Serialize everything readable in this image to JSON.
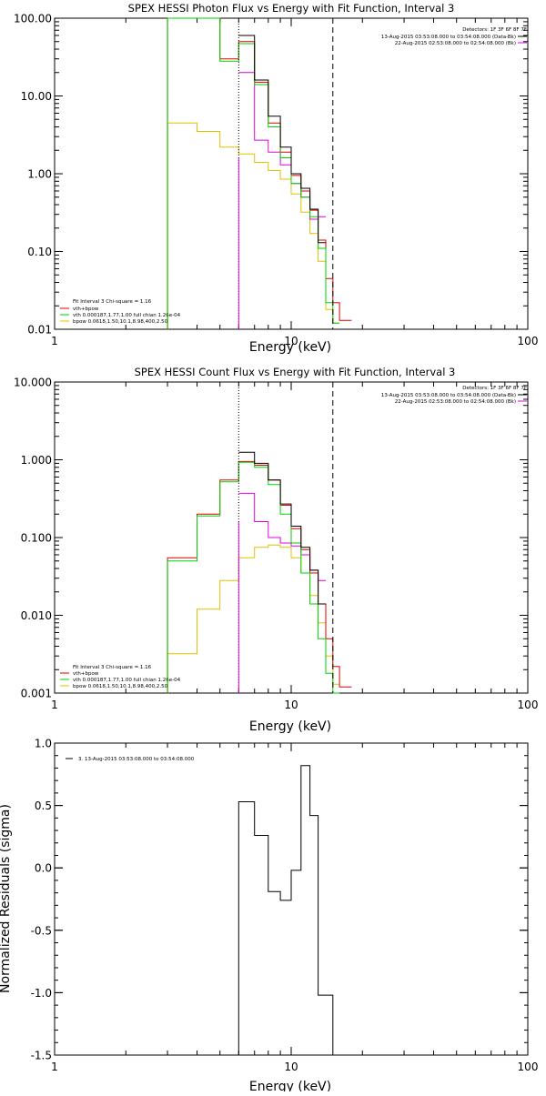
{
  "colors": {
    "background": "#ffffff",
    "axes": "#000000",
    "data": "#000000",
    "total_model": "#e00000",
    "background_model": "#e000e0",
    "vth_component": "#00d000",
    "bpow_component": "#e0c000",
    "energy_marker": "#e000e0"
  },
  "chart_data": [
    {
      "type": "line",
      "title": "SPEX HESSI Photon Flux vs Energy with Fit Function, Interval 3",
      "xlabel": "Energy (keV)",
      "ylabel": "",
      "xscale": "log",
      "yscale": "log",
      "xlim": [
        1,
        100
      ],
      "ylim": [
        0.01,
        100
      ],
      "xticks": [
        "1",
        "10",
        "100"
      ],
      "yticks": [
        "0.01",
        "0.10",
        "1.00",
        "10.00",
        "100.00"
      ],
      "header_lines": [
        "Detectors: 1F 3F 6F 8F 7F",
        "13-Aug-2015 03:53:08.000 to 03:54:08.000 (Data-Bk)",
        "22-Aug-2015 02:53:08.000 to 02:54:08.000 (Bk)"
      ],
      "fit_lines": [
        "Fit Interval 3   Chi-square = 1.16",
        "vth+bpow",
        "vth 0.000187,1.77,1.00  full chian 1.26e-04",
        "bpow 0.0618,1.50,10.1,8.98,400,2.50"
      ],
      "bin_edges": [
        3.0,
        4.0,
        5.0,
        6.0,
        7.0,
        8.0,
        9.0,
        10.0,
        11.0,
        12.0,
        13.0,
        14.0,
        15.0,
        16.0,
        18.0
      ],
      "series": [
        {
          "key": "data",
          "values": [
            null,
            null,
            null,
            60,
            16,
            5.5,
            2.2,
            1.0,
            0.65,
            0.35,
            0.13,
            null,
            null,
            null
          ]
        },
        {
          "key": "total_model",
          "values": [
            100,
            100,
            30,
            50,
            15,
            4.5,
            1.9,
            0.95,
            0.6,
            0.34,
            0.14,
            0.045,
            0.022,
            0.013
          ]
        },
        {
          "key": "background_model",
          "values": [
            null,
            null,
            null,
            20,
            2.7,
            1.9,
            1.3,
            0.75,
            0.5,
            0.26,
            0.28,
            null,
            null,
            null
          ]
        },
        {
          "key": "vth_component",
          "values": [
            100,
            100,
            28,
            47,
            14,
            4.0,
            1.6,
            0.75,
            0.5,
            0.28,
            0.11,
            0.022,
            0.012,
            null
          ]
        },
        {
          "key": "bpow_component",
          "values": [
            4.5,
            3.5,
            2.2,
            1.8,
            1.4,
            1.1,
            0.85,
            0.55,
            0.32,
            0.17,
            0.075,
            0.018,
            0.012,
            null
          ]
        }
      ],
      "vlines": [
        {
          "x": 6.0,
          "style": "dotted"
        },
        {
          "x": 6.0,
          "style": "solid",
          "color": "energy_marker"
        },
        {
          "x": 15.0,
          "style": "dashed"
        }
      ]
    },
    {
      "type": "line",
      "title": "SPEX HESSI Count Flux vs Energy with Fit Function, Interval 3",
      "xlabel": "Energy (keV)",
      "ylabel": "",
      "xscale": "log",
      "yscale": "log",
      "xlim": [
        1,
        100
      ],
      "ylim": [
        0.001,
        10
      ],
      "xticks": [
        "1",
        "10",
        "100"
      ],
      "yticks": [
        "0.001",
        "0.010",
        "0.100",
        "1.000",
        "10.000"
      ],
      "header_lines": [
        "Detectors: 1F 3F 6F 8F 7F",
        "13-Aug-2015 03:53:08.000 to 03:54:08.000 (Data-Bk)",
        "22-Aug-2015 02:53:08.000 to 02:54:08.000 (Bk)"
      ],
      "fit_lines": [
        "Fit Interval 3   Chi-square = 1.16",
        "vth+bpow",
        "vth 0.000187,1.77,1.00  full chian 1.26e-04",
        "bpow 0.0618,1.50,10.1,8.98,400,2.50"
      ],
      "bin_edges": [
        3.0,
        4.0,
        5.0,
        6.0,
        7.0,
        8.0,
        9.0,
        10.0,
        11.0,
        12.0,
        13.0,
        14.0,
        15.0,
        16.0,
        18.0
      ],
      "series": [
        {
          "key": "data",
          "values": [
            null,
            null,
            null,
            1.25,
            0.9,
            0.55,
            0.27,
            0.14,
            0.075,
            0.038,
            0.014,
            null,
            null,
            null
          ]
        },
        {
          "key": "total_model",
          "values": [
            0.055,
            0.2,
            0.55,
            0.95,
            0.85,
            0.55,
            0.26,
            0.13,
            0.07,
            0.035,
            0.014,
            0.005,
            0.0022,
            0.0012
          ]
        },
        {
          "key": "background_model",
          "values": [
            null,
            null,
            null,
            0.37,
            0.16,
            0.1,
            0.085,
            0.078,
            0.06,
            0.038,
            0.028,
            null,
            null,
            null
          ]
        },
        {
          "key": "vth_component",
          "values": [
            0.05,
            0.19,
            0.52,
            0.93,
            0.8,
            0.48,
            0.2,
            0.085,
            0.035,
            0.014,
            0.005,
            0.0018,
            0.001,
            null
          ]
        },
        {
          "key": "bpow_component",
          "values": [
            0.0032,
            0.012,
            0.028,
            0.055,
            0.075,
            0.08,
            0.075,
            0.055,
            0.035,
            0.018,
            0.008,
            0.003,
            0.0013,
            null
          ]
        }
      ],
      "vlines": [
        {
          "x": 6.0,
          "style": "dotted"
        },
        {
          "x": 6.0,
          "style": "solid",
          "color": "energy_marker"
        },
        {
          "x": 15.0,
          "style": "dashed"
        }
      ]
    },
    {
      "type": "line",
      "title": "",
      "xlabel": "Energy (keV)",
      "ylabel": "Normalized Residuals (sigma)",
      "xscale": "log",
      "yscale": "linear",
      "xlim": [
        1,
        100
      ],
      "ylim": [
        -1.5,
        1.0
      ],
      "xticks": [
        "1",
        "10",
        "100"
      ],
      "yticks": [
        "-1.5",
        "-1.0",
        "-0.5",
        "0.0",
        "0.5",
        "1.0"
      ],
      "legend": "3. 13-Aug-2015 03:53:08.000 to 03:54:08.000",
      "bin_edges": [
        6.0,
        7.0,
        8.0,
        9.0,
        10.0,
        11.0,
        12.0,
        13.0,
        15.0
      ],
      "values": [
        0.53,
        0.26,
        -0.19,
        -0.26,
        -0.02,
        0.82,
        0.42,
        -1.02
      ]
    }
  ]
}
